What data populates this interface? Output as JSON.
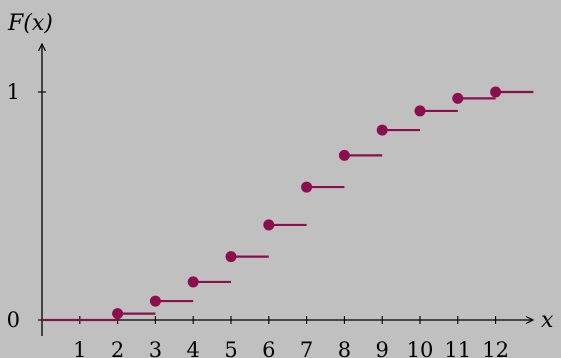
{
  "chart_data": {
    "type": "line",
    "step": true,
    "title": "",
    "xlabel": "x",
    "ylabel": "F(x)",
    "x_ticks": [
      "1",
      "2",
      "3",
      "4",
      "5",
      "6",
      "7",
      "8",
      "9",
      "10",
      "11",
      "12"
    ],
    "y_ticks": [
      "0",
      "1"
    ],
    "xlim": [
      0,
      13
    ],
    "ylim": [
      0,
      1
    ],
    "grid": false,
    "background_color": "#c0c0c0",
    "series_color": "#8b0f4e",
    "baseline": {
      "x": [
        0,
        2
      ],
      "y": 0
    },
    "series": [
      {
        "x": [
          2,
          3,
          4,
          5,
          6,
          7,
          8,
          9,
          10,
          11,
          12
        ],
        "y": [
          0.028,
          0.083,
          0.167,
          0.278,
          0.417,
          0.583,
          0.722,
          0.833,
          0.917,
          0.972,
          1.0
        ]
      }
    ]
  }
}
